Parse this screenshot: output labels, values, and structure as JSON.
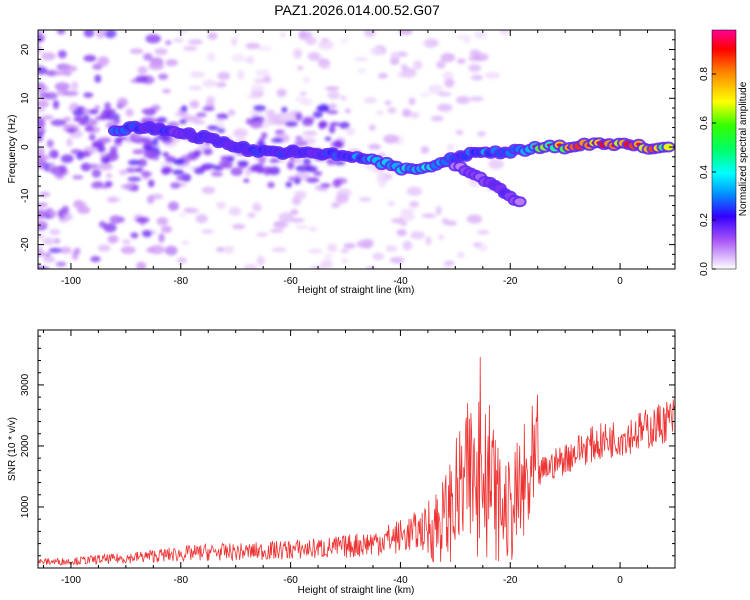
{
  "title": "PAZ1.2026.014.00.52.G07",
  "chart_data": [
    {
      "type": "heatmap",
      "xlabel": "Height of straight line (km)",
      "ylabel": "Frequency (Hz)",
      "xlim": [
        -106,
        10
      ],
      "ylim": [
        -25,
        24
      ],
      "xticks": [
        -100,
        -80,
        -60,
        -40,
        -20,
        0
      ],
      "yticks": [
        -20,
        -10,
        0,
        10,
        20
      ],
      "ridge": [
        {
          "x": -92,
          "y": 3.5,
          "v": 0.4
        },
        {
          "x": -86,
          "y": 4.0,
          "v": 0.35
        },
        {
          "x": -80,
          "y": 3.0,
          "v": 0.3
        },
        {
          "x": -76,
          "y": 2.0,
          "v": 0.3
        },
        {
          "x": -72,
          "y": 1.0,
          "v": 0.35
        },
        {
          "x": -68,
          "y": -0.5,
          "v": 0.35
        },
        {
          "x": -64,
          "y": -1.0,
          "v": 0.4
        },
        {
          "x": -60,
          "y": -1.0,
          "v": 0.35
        },
        {
          "x": -56,
          "y": -1.5,
          "v": 0.3
        },
        {
          "x": -52,
          "y": -1.5,
          "v": 0.4
        },
        {
          "x": -48,
          "y": -2.0,
          "v": 0.45
        },
        {
          "x": -44,
          "y": -3.0,
          "v": 0.5
        },
        {
          "x": -40,
          "y": -4.5,
          "v": 0.55
        },
        {
          "x": -36,
          "y": -4.5,
          "v": 0.55
        },
        {
          "x": -31,
          "y": -2.5,
          "v": 0.4
        },
        {
          "x": -25,
          "y": -1.0,
          "v": 0.45
        },
        {
          "x": -20,
          "y": -1.0,
          "v": 0.5
        },
        {
          "x": -15,
          "y": 0.0,
          "v": 0.65
        },
        {
          "x": -10,
          "y": 0.0,
          "v": 0.85
        },
        {
          "x": -5,
          "y": 0.5,
          "v": 0.9
        },
        {
          "x": 0,
          "y": 0.5,
          "v": 0.92
        },
        {
          "x": 5,
          "y": 0.0,
          "v": 0.88
        },
        {
          "x": 9,
          "y": 0.0,
          "v": 0.8
        }
      ],
      "branch": [
        {
          "x": -30,
          "y": -4.0,
          "v": 0.2
        },
        {
          "x": -25,
          "y": -6.5,
          "v": 0.25
        },
        {
          "x": -20,
          "y": -10.0,
          "v": 0.3
        },
        {
          "x": -18,
          "y": -11.5,
          "v": 0.2
        }
      ]
    },
    {
      "type": "line",
      "xlabel": "Height of straight line (km)",
      "ylabel": "SNR (10 * v/v)",
      "xlim": [
        -106,
        10
      ],
      "ylim": [
        0,
        3900
      ],
      "xticks": [
        -100,
        -80,
        -60,
        -40,
        -20,
        0
      ],
      "yticks": [
        1000,
        2000,
        3000
      ],
      "series": [
        {
          "name": "SNR",
          "color": "#ee3333",
          "x": [
            -106,
            -100,
            -95,
            -90,
            -85,
            -80,
            -75,
            -70,
            -65,
            -60,
            -55,
            -50,
            -45,
            -40,
            -35,
            -32,
            -30,
            -28,
            -26,
            -24,
            -22,
            -20,
            -18,
            -16,
            -14,
            -12,
            -10,
            -8,
            -6,
            -4,
            -2,
            0,
            2,
            4,
            6,
            8,
            10
          ],
          "y": [
            100,
            110,
            140,
            160,
            200,
            230,
            260,
            260,
            280,
            300,
            320,
            350,
            420,
            520,
            650,
            800,
            1100,
            1400,
            1600,
            1500,
            1000,
            900,
            1200,
            1400,
            1600,
            1700,
            1800,
            1900,
            2000,
            2050,
            2100,
            2150,
            2200,
            2250,
            2300,
            2400,
            2450
          ]
        }
      ]
    }
  ]
}
